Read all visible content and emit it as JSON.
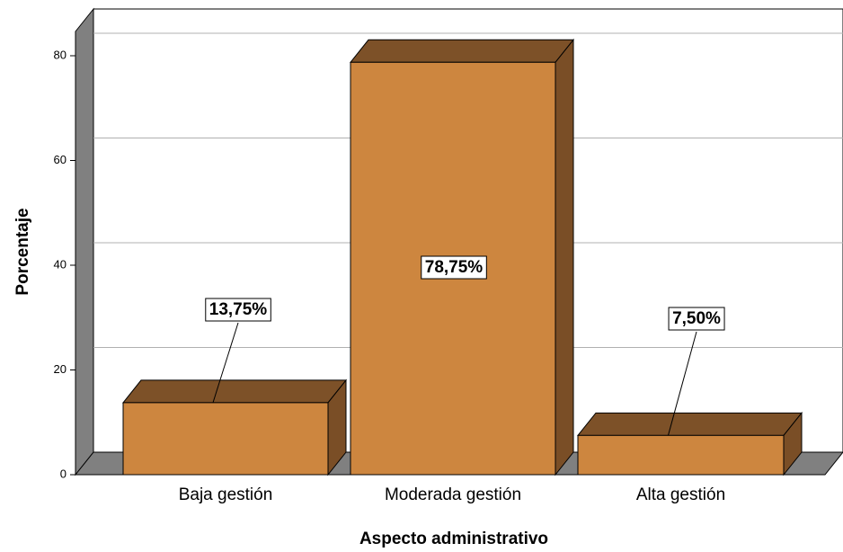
{
  "chart_data": {
    "type": "bar3d",
    "x_label": "Aspecto administrativo",
    "y_label": "Porcentaje",
    "categories": [
      "Baja gestión",
      "Moderada gestión",
      "Alta gestión"
    ],
    "values": [
      13.75,
      78.75,
      7.5
    ],
    "value_labels": [
      "13,75%",
      "78,75%",
      "7,50%"
    ],
    "color": "#cd863f",
    "ylim": [
      0,
      84
    ],
    "yticks": [
      0,
      20,
      40,
      60,
      80
    ],
    "grid": true
  }
}
